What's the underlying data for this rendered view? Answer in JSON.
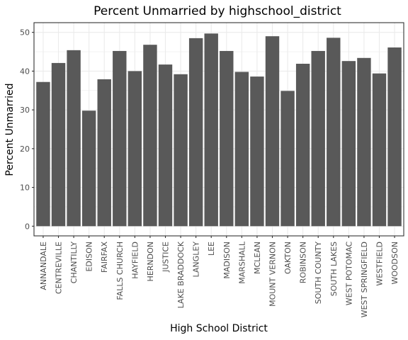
{
  "chart_data": {
    "type": "bar",
    "title": "Percent Unmarried by highschool_district",
    "xlabel": "High School District",
    "ylabel": "Percent Unmarried",
    "ylim": [
      -2.5,
      52.5
    ],
    "yticks": [
      0,
      10,
      20,
      30,
      40,
      50
    ],
    "grid": true,
    "bar_color": "#595959",
    "grid_color": "#ebebeb",
    "categories": [
      "ANNANDALE",
      "CENTREVILLE",
      "CHANTILLY",
      "EDISON",
      "FAIRFAX",
      "FALLS CHURCH",
      "HAYFIELD",
      "HERNDON",
      "JUSTICE",
      "LAKE BRADDOCK",
      "LANGLEY",
      "LEE",
      "MADISON",
      "MARSHALL",
      "MCLEAN",
      "MOUNT VERNON",
      "OAKTON",
      "ROBINSON",
      "SOUTH COUNTY",
      "SOUTH LAKES",
      "WEST POTOMAC",
      "WEST SPRINGFIELD",
      "WESTFIELD",
      "WOODSON"
    ],
    "values": [
      37.2,
      42.1,
      45.4,
      29.8,
      37.9,
      45.2,
      40.0,
      46.8,
      41.7,
      39.2,
      48.5,
      49.7,
      45.2,
      39.8,
      38.6,
      49.0,
      34.9,
      41.9,
      45.2,
      48.6,
      42.6,
      43.4,
      39.4,
      46.1
    ]
  }
}
